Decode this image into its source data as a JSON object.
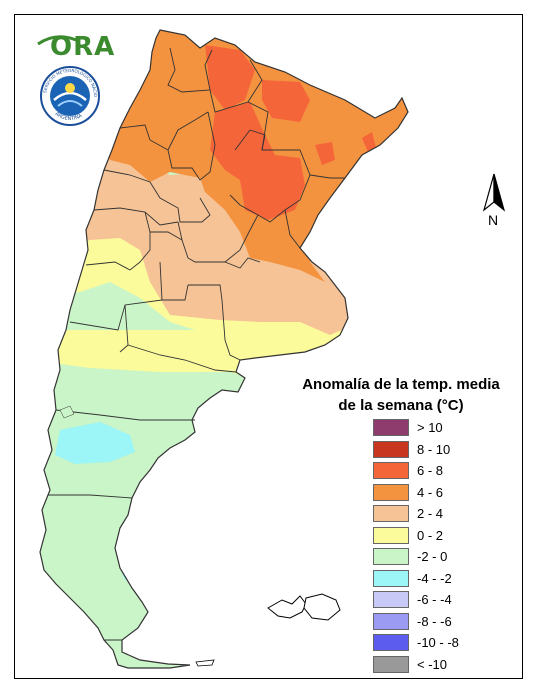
{
  "logo": {
    "text": "ORA"
  },
  "seal": {
    "top_text": "SERVICIO METEOROLÓGICO NACIONAL",
    "bottom_text": "ARGENTINA"
  },
  "north_arrow": {
    "label": "N"
  },
  "legend": {
    "title_line1": "Anomalía de la temp. media",
    "title_line2": "de la semana (°C)",
    "items": [
      {
        "label": "> 10",
        "color": "#8e3c6e"
      },
      {
        "label": "8 - 10",
        "color": "#c8361f"
      },
      {
        "label": "6 - 8",
        "color": "#f5653a"
      },
      {
        "label": "4 - 6",
        "color": "#f4933f"
      },
      {
        "label": "2 - 4",
        "color": "#f6c396"
      },
      {
        "label": "0 - 2",
        "color": "#fbfb9c"
      },
      {
        "label": "-2 - 0",
        "color": "#c9f5c8"
      },
      {
        "label": "-4 - -2",
        "color": "#9cf5f6"
      },
      {
        "label": "-6 - -4",
        "color": "#c9c9f8"
      },
      {
        "label": "-8 - -6",
        "color": "#9b9bf3"
      },
      {
        "label": "-10 - -8",
        "color": "#5c5cee"
      },
      {
        "label": "< -10",
        "color": "#999999"
      }
    ]
  },
  "map_colors": {
    "c6_8": "#f5653a",
    "c4_6": "#f4933f",
    "c2_4": "#f6c396",
    "c0_2": "#fbfb9c",
    "cm2_0": "#c9f5c8",
    "cm4_m2": "#9cf5f6",
    "border": "#333333"
  }
}
